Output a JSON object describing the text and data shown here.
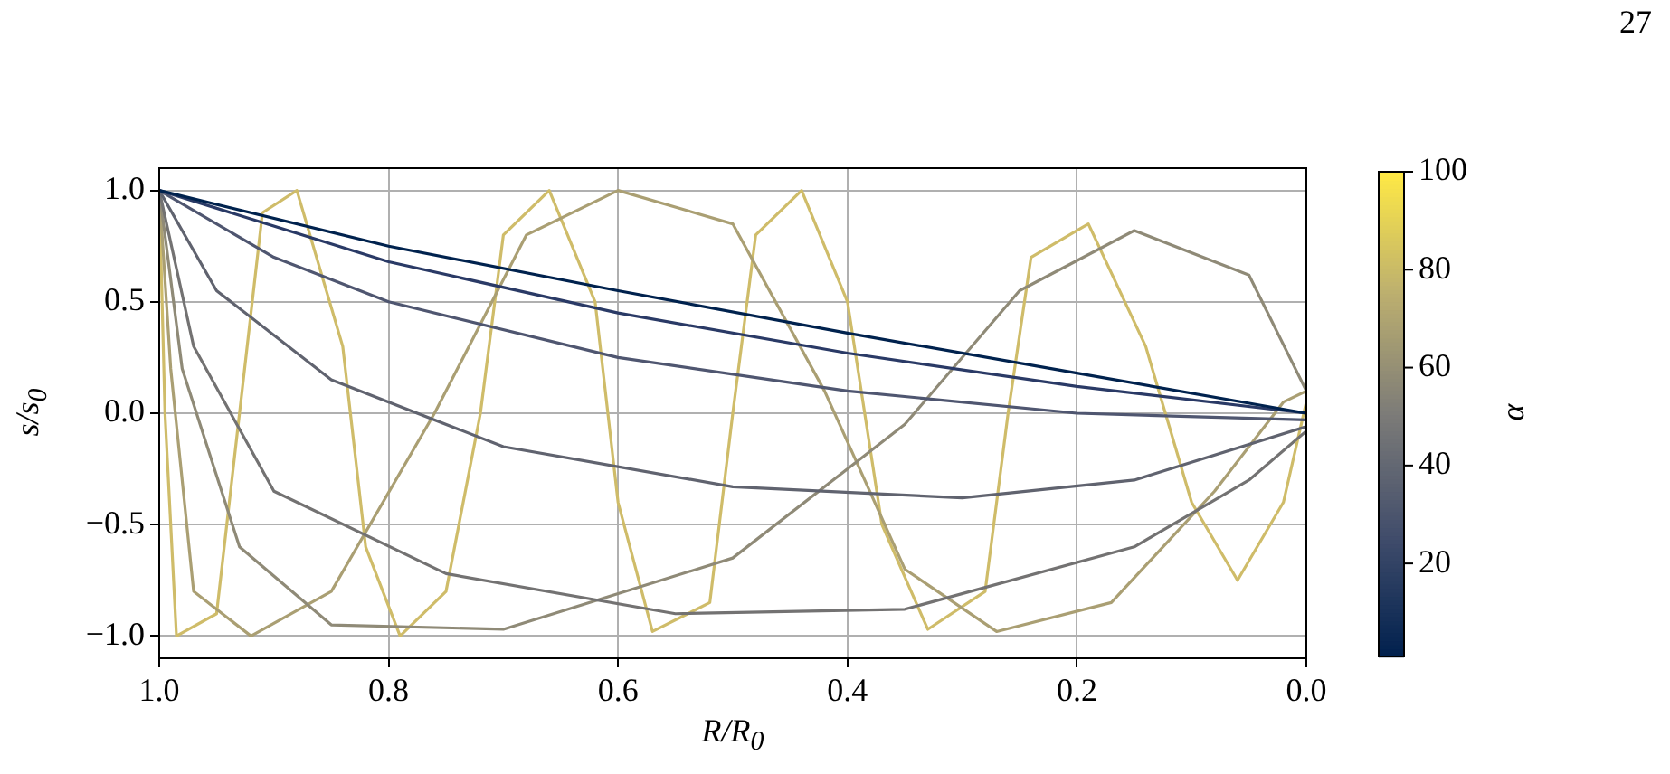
{
  "chart_data": {
    "type": "line",
    "xlabel": "R/R$_{0}$",
    "ylabel": "s/s$_{0}$",
    "clabel": "α",
    "clim": [
      1,
      100
    ],
    "cticks": [
      20,
      40,
      60,
      80,
      100
    ],
    "annotations": [
      "27"
    ],
    "grid": true,
    "xlim": [
      1.0,
      0.0
    ],
    "xticks": [
      {
        "value": 1,
        "label": "1.0"
      },
      {
        "value": 0.8,
        "label": "0.8"
      },
      {
        "value": 0.6,
        "label": "0.6"
      },
      {
        "value": 0.4,
        "label": "0.4"
      },
      {
        "value": 0.2,
        "label": "0.2"
      },
      {
        "value": 0,
        "label": "0.0"
      }
    ],
    "ylim": [
      -1.1,
      1.1
    ],
    "yticks": [
      {
        "value": -1,
        "label": "−1.0"
      },
      {
        "value": -0.5,
        "label": "−0.5"
      },
      {
        "value": 0,
        "label": "0.0"
      },
      {
        "value": 0.5,
        "label": "0.5"
      },
      {
        "value": 1,
        "label": "1.0"
      }
    ],
    "series": [
      {
        "color": "#00224e",
        "x": [
          1,
          0.8,
          0.6,
          0.4,
          0.2,
          0
        ],
        "values": [
          1,
          0.75,
          0.55,
          0.36,
          0.18,
          0
        ]
      },
      {
        "color": "#2a3a66",
        "x": [
          1,
          0.8,
          0.6,
          0.4,
          0.2,
          0
        ],
        "values": [
          1,
          0.68,
          0.45,
          0.27,
          0.12,
          0.0
        ]
      },
      {
        "color": "#4f5670",
        "x": [
          1,
          0.9,
          0.8,
          0.6,
          0.4,
          0.2,
          0
        ],
        "values": [
          1,
          0.7,
          0.5,
          0.25,
          0.1,
          0.0,
          -0.03
        ]
      },
      {
        "color": "#60636f",
        "x": [
          1,
          0.95,
          0.85,
          0.7,
          0.5,
          0.3,
          0.15,
          0
        ],
        "values": [
          1,
          0.55,
          0.15,
          -0.15,
          -0.33,
          -0.38,
          -0.3,
          -0.06
        ]
      },
      {
        "color": "#737272",
        "x": [
          1,
          0.97,
          0.9,
          0.75,
          0.55,
          0.35,
          0.15,
          0.05,
          0
        ],
        "values": [
          1,
          0.3,
          -0.35,
          -0.72,
          -0.9,
          -0.88,
          -0.6,
          -0.3,
          -0.08
        ]
      },
      {
        "color": "#8f8a77",
        "x": [
          1,
          0.98,
          0.93,
          0.85,
          0.7,
          0.5,
          0.35,
          0.25,
          0.15,
          0.05,
          0
        ],
        "values": [
          1,
          0.2,
          -0.6,
          -0.95,
          -0.97,
          -0.65,
          -0.05,
          0.55,
          0.82,
          0.62,
          0.1
        ]
      },
      {
        "color": "#aa9f73",
        "x": [
          1,
          0.99,
          0.97,
          0.92,
          0.85,
          0.76,
          0.68,
          0.6,
          0.5,
          0.42,
          0.35,
          0.27,
          0.17,
          0.08,
          0.02,
          0
        ],
        "values": [
          1,
          0.2,
          -0.8,
          -1,
          -0.8,
          0,
          0.8,
          1,
          0.85,
          0.1,
          -0.7,
          -0.98,
          -0.85,
          -0.35,
          0.05,
          0.1
        ]
      },
      {
        "color": "#cfbc69",
        "x": [
          1,
          0.995,
          0.985,
          0.95,
          0.93,
          0.91,
          0.88,
          0.84,
          0.82,
          0.79,
          0.75,
          0.72,
          0.7,
          0.66,
          0.62,
          0.6,
          0.57,
          0.52,
          0.5,
          0.48,
          0.44,
          0.4,
          0.37,
          0.33,
          0.28,
          0.26,
          0.24,
          0.19,
          0.14,
          0.1,
          0.06,
          0.02,
          0
        ],
        "values": [
          1,
          0,
          -1,
          -0.9,
          0,
          0.9,
          1,
          0.3,
          -0.6,
          -1,
          -0.8,
          0,
          0.8,
          1,
          0.5,
          -0.4,
          -0.98,
          -0.85,
          0,
          0.8,
          1,
          0.5,
          -0.5,
          -0.97,
          -0.8,
          0,
          0.7,
          0.85,
          0.3,
          -0.4,
          -0.75,
          -0.4,
          0.05
        ]
      }
    ]
  }
}
